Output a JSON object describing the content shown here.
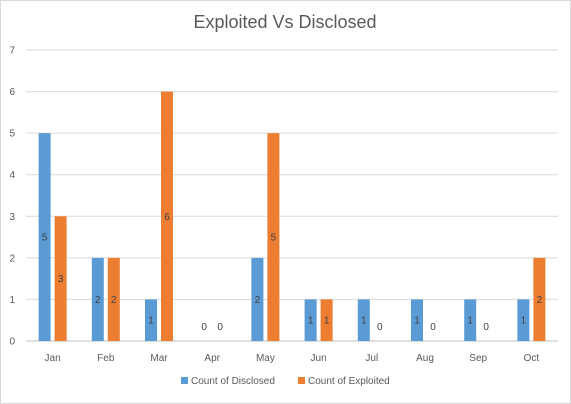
{
  "chart_data": {
    "type": "bar",
    "title": "Exploited Vs Disclosed",
    "xlabel": "",
    "ylabel": "",
    "categories": [
      "Jan",
      "Feb",
      "Mar",
      "Apr",
      "May",
      "Jun",
      "Jul",
      "Aug",
      "Sep",
      "Oct"
    ],
    "series": [
      {
        "name": "Count of Disclosed",
        "values": [
          5,
          2,
          1,
          0,
          2,
          1,
          1,
          1,
          1,
          1
        ],
        "color": "#5b9bd5"
      },
      {
        "name": "Count of Exploited",
        "values": [
          3,
          2,
          6,
          0,
          5,
          1,
          0,
          0,
          0,
          2
        ],
        "color": "#ed7d31"
      }
    ],
    "ylim": [
      0,
      7
    ],
    "yticks": [
      0,
      1,
      2,
      3,
      4,
      5,
      6,
      7
    ],
    "grid": true,
    "data_labels": true,
    "legend_position": "bottom"
  }
}
